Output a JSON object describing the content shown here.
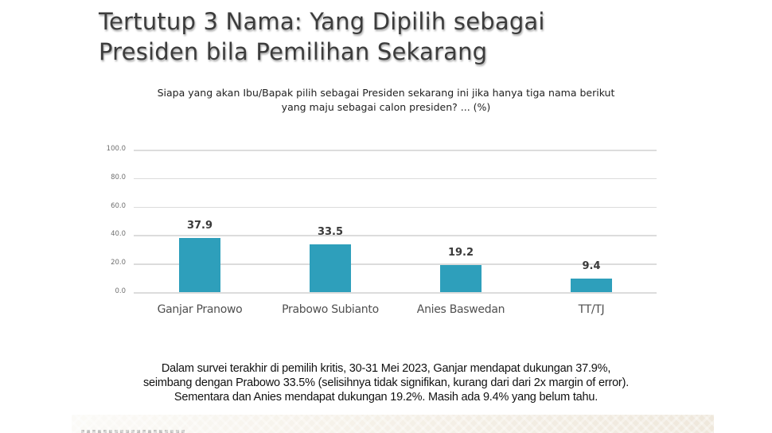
{
  "header": {
    "title_line1": "Tertutup 3 Nama: Yang Dipilih sebagai",
    "title_line2": "Presiden bila Pemilihan Sekarang",
    "question_line1": "Siapa yang akan Ibu/Bapak pilih sebagai Presiden sekarang ini jika hanya tiga nama berikut",
    "question_line2": "yang maju sebagai calon presiden? ... (%)"
  },
  "chart_data": {
    "type": "bar",
    "title": "Tertutup 3 Nama: Yang Dipilih sebagai Presiden bila Pemilihan Sekarang",
    "subtitle": "Siapa yang akan Ibu/Bapak pilih sebagai Presiden sekarang ini jika hanya tiga nama berikut yang maju sebagai calon presiden? ... (%)",
    "categories": [
      "Ganjar Pranowo",
      "Prabowo Subianto",
      "Anies Baswedan",
      "TT/TJ"
    ],
    "values": [
      37.9,
      33.5,
      19.2,
      9.4
    ],
    "value_labels": [
      "37.9",
      "33.5",
      "19.2",
      "9.4"
    ],
    "xlabel": "",
    "ylabel": "",
    "ylim": [
      0,
      100
    ],
    "yticks": [
      "0.0",
      "20.0",
      "40.0",
      "60.0",
      "80.0",
      "100.0"
    ],
    "grid": true,
    "legend": "none",
    "bar_color": "#2e9fbb"
  },
  "caption": {
    "line1": "Dalam survei terakhir di pemilih kritis, 30-31 Mei 2023, Ganjar mendapat dukungan 37.9%,",
    "line2": "seimbang dengan Prabowo 33.5% (selisihnya tidak signifikan, kurang dari dari 2x margin of error).",
    "line3": "Sementara dan Anies mendapat dukungan 19.2%. Masih ada 9.4% yang belum tahu."
  }
}
